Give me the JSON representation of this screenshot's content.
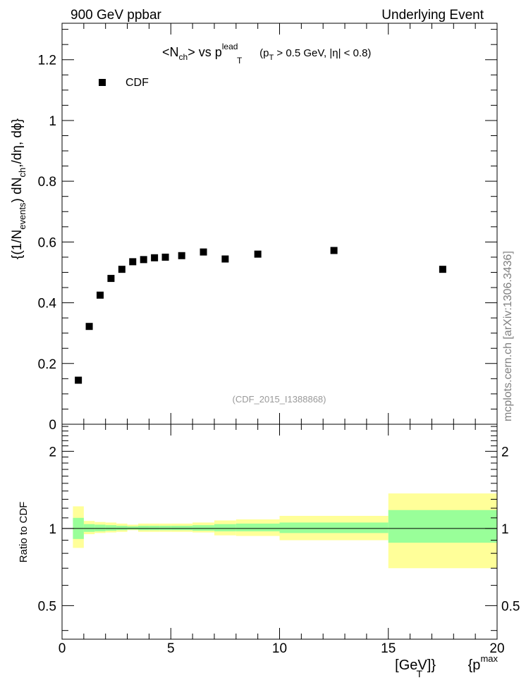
{
  "header": {
    "left": "900 GeV ppbar",
    "right": "Underlying Event"
  },
  "watermark": "mcplots.cern.ch [arXiv:1306.3436]",
  "colors": {
    "frame": "#000000",
    "inner_band": "#99ff99",
    "outer_band": "#ffff99",
    "analysis_tag": "#999999"
  },
  "chart_data": [
    {
      "type": "scatter",
      "title_parts": {
        "a": "<N",
        "a_sub": "ch",
        "b": "> vs p",
        "b_sub": "T",
        "b_sup": "lead",
        "c": " (p",
        "c_sub": "T",
        "d": " > 0.5 GeV, |η| < 0.8)"
      },
      "ylabel_parts": {
        "a": "{(1/N",
        "a_sub": "events",
        "b": ") dN",
        "b_sub": "ch",
        "c": ",/dη, dϕ}"
      },
      "analysis_tag": "(CDF_2015_I1388868)",
      "xlim": [
        0,
        20
      ],
      "ylim": [
        0,
        1.32
      ],
      "y_ticks": [
        0,
        0.2,
        0.4,
        0.6,
        0.8,
        1,
        1.2
      ],
      "y_tick_labels": [
        "0",
        "0.2",
        "0.4",
        "0.6",
        "0.8",
        "1",
        "1.2"
      ],
      "legend": {
        "placement": "top-left",
        "entry": "CDF"
      },
      "series": [
        {
          "name": "CDF",
          "x": [
            0.75,
            1.25,
            1.75,
            2.25,
            2.75,
            3.25,
            3.75,
            4.25,
            4.75,
            5.5,
            6.5,
            7.5,
            9.0,
            12.5,
            17.5
          ],
          "y": [
            0.145,
            0.322,
            0.425,
            0.48,
            0.51,
            0.535,
            0.542,
            0.548,
            0.55,
            0.555,
            0.567,
            0.544,
            0.56,
            0.572,
            0.51
          ]
        }
      ]
    },
    {
      "type": "area",
      "ylabel": "Ratio to CDF",
      "xlabel_parts": {
        "a": "{p",
        "sub": "T",
        "sup": "max",
        "b": " [GeV]}"
      },
      "xlim": [
        0,
        20
      ],
      "ylim": [
        0.37,
        2.55
      ],
      "y_scale": "log",
      "y_ticks": [
        0.5,
        1,
        2
      ],
      "y_tick_labels": [
        "0.5",
        "1",
        "2"
      ],
      "x_ticks": [
        0,
        5,
        10,
        15,
        20
      ],
      "x_tick_labels": [
        "0",
        "5",
        "10",
        "15",
        "20"
      ],
      "reference_line": 1,
      "bins_low": [
        0.5,
        1.0,
        1.5,
        2.0,
        2.5,
        3.0,
        3.5,
        4.0,
        4.5,
        5.0,
        6.0,
        7.0,
        8.0,
        10.0,
        15.0
      ],
      "bins_high": [
        1.0,
        1.5,
        2.0,
        2.5,
        3.0,
        3.5,
        4.0,
        4.5,
        5.0,
        6.0,
        7.0,
        8.0,
        10.0,
        15.0,
        20.0
      ],
      "inner_band": {
        "lo": [
          0.91,
          0.97,
          0.975,
          0.98,
          0.985,
          0.99,
          0.985,
          0.985,
          0.985,
          0.985,
          0.98,
          0.975,
          0.975,
          0.96,
          0.88
        ],
        "hi": [
          1.1,
          1.04,
          1.035,
          1.03,
          1.025,
          1.02,
          1.025,
          1.025,
          1.025,
          1.025,
          1.03,
          1.04,
          1.045,
          1.055,
          1.18
        ]
      },
      "outer_band": {
        "lo": [
          0.84,
          0.95,
          0.96,
          0.965,
          0.97,
          0.985,
          0.97,
          0.97,
          0.97,
          0.97,
          0.965,
          0.94,
          0.935,
          0.9,
          0.7
        ],
        "hi": [
          1.22,
          1.07,
          1.06,
          1.055,
          1.045,
          1.035,
          1.045,
          1.045,
          1.045,
          1.045,
          1.055,
          1.075,
          1.085,
          1.12,
          1.37
        ]
      }
    }
  ]
}
